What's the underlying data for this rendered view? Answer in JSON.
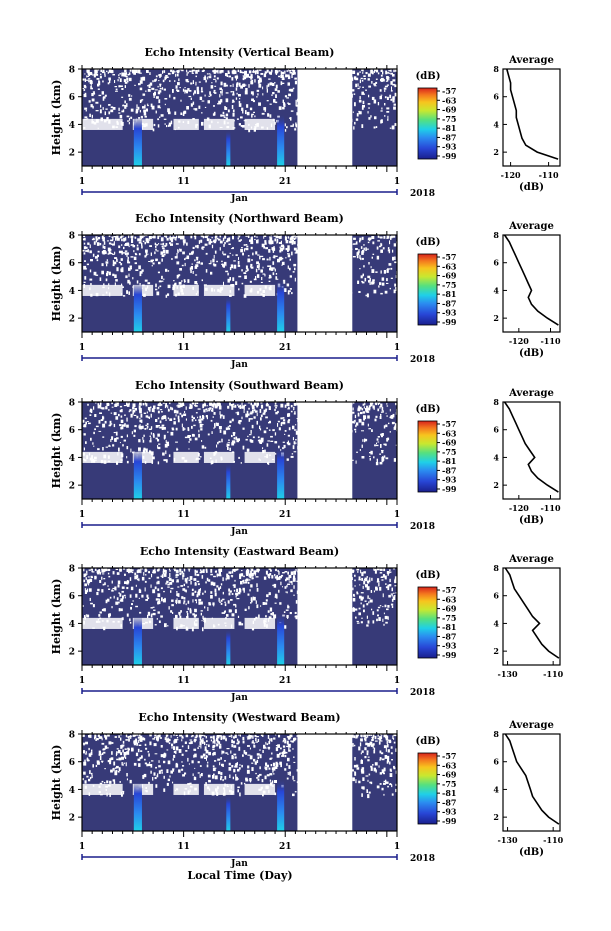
{
  "figure": {
    "xlabel": "Local Time (Day)"
  },
  "chart_data": [
    {
      "type": "heatmap",
      "title": "Echo Intensity (Vertical Beam)",
      "ylabel": "Height (km)",
      "ylim": [
        1,
        8
      ],
      "yticks": [
        "2",
        "4",
        "6",
        "8"
      ],
      "xlim": [
        1,
        32
      ],
      "xticks": [
        "1",
        "11",
        "21",
        "1"
      ],
      "month_label": "Jan",
      "year_label": "2018",
      "colorbar": {
        "unit": "(dB)",
        "labels": [
          "-57",
          "-63",
          "-69",
          "-75",
          "-81",
          "-87",
          "-93",
          "-99"
        ]
      },
      "profile": {
        "title": "Average",
        "xlabel": "(dB)",
        "xticks": [
          "-120",
          "-110"
        ],
        "xlim": [
          -122,
          -107
        ],
        "heights": [
          1.5,
          2,
          2.5,
          3,
          3.5,
          4,
          4.5,
          5,
          5.5,
          6,
          6.5,
          7,
          7.5,
          8
        ],
        "values": [
          -107.5,
          -113,
          -116,
          -117,
          -117.5,
          -118,
          -118.5,
          -118.5,
          -119,
          -119.5,
          -120,
          -120,
          -120.5,
          -121
        ]
      }
    },
    {
      "type": "heatmap",
      "title": "Echo Intensity (Northward Beam)",
      "ylabel": "Height (km)",
      "ylim": [
        1,
        8
      ],
      "yticks": [
        "2",
        "4",
        "6",
        "8"
      ],
      "xlim": [
        1,
        32
      ],
      "xticks": [
        "1",
        "11",
        "21",
        "1"
      ],
      "month_label": "Jan",
      "year_label": "2018",
      "colorbar": {
        "unit": "(dB)",
        "labels": [
          "-57",
          "-63",
          "-69",
          "-75",
          "-81",
          "-87",
          "-93",
          "-99"
        ]
      },
      "profile": {
        "title": "Average",
        "xlabel": "(dB)",
        "xticks": [
          "-120",
          "-110"
        ],
        "xlim": [
          -125,
          -107
        ],
        "heights": [
          1.5,
          2,
          2.5,
          3,
          3.5,
          4,
          4.5,
          5,
          5.5,
          6,
          6.5,
          7,
          7.5,
          8
        ],
        "values": [
          -107.5,
          -111,
          -114,
          -116,
          -117,
          -116,
          -117,
          -118,
          -119,
          -120,
          -121,
          -122,
          -123,
          -124.5
        ]
      }
    },
    {
      "type": "heatmap",
      "title": "Echo Intensity (Southward Beam)",
      "ylabel": "Height (km)",
      "ylim": [
        1,
        8
      ],
      "yticks": [
        "2",
        "4",
        "6",
        "8"
      ],
      "xlim": [
        1,
        32
      ],
      "xticks": [
        "1",
        "11",
        "21",
        "1"
      ],
      "month_label": "Jan",
      "year_label": "2018",
      "colorbar": {
        "unit": "(dB)",
        "labels": [
          "-57",
          "-63",
          "-69",
          "-75",
          "-81",
          "-87",
          "-93",
          "-99"
        ]
      },
      "profile": {
        "title": "Average",
        "xlabel": "(dB)",
        "xticks": [
          "-120",
          "-110"
        ],
        "xlim": [
          -125,
          -107
        ],
        "heights": [
          1.5,
          2,
          2.5,
          3,
          3.5,
          4,
          4.5,
          5,
          5.5,
          6,
          6.5,
          7,
          7.5,
          8
        ],
        "values": [
          -107.5,
          -111,
          -114,
          -116,
          -117,
          -115,
          -116.5,
          -118,
          -119,
          -120,
          -121,
          -122,
          -123,
          -124.5
        ]
      }
    },
    {
      "type": "heatmap",
      "title": "Echo Intensity (Eastward Beam)",
      "ylabel": "Height (km)",
      "ylim": [
        1,
        8
      ],
      "yticks": [
        "2",
        "4",
        "6",
        "8"
      ],
      "xlim": [
        1,
        32
      ],
      "xticks": [
        "1",
        "11",
        "21",
        "1"
      ],
      "month_label": "Jan",
      "year_label": "2018",
      "colorbar": {
        "unit": "(dB)",
        "labels": [
          "-57",
          "-63",
          "-69",
          "-75",
          "-81",
          "-87",
          "-93",
          "-99"
        ]
      },
      "profile": {
        "title": "Average",
        "xlabel": "",
        "xticks": [
          "-130",
          "-110"
        ],
        "xlim": [
          -132,
          -107
        ],
        "heights": [
          1.5,
          2,
          2.5,
          3,
          3.5,
          4,
          4.5,
          5,
          5.5,
          6,
          6.5,
          7,
          7.5,
          8
        ],
        "values": [
          -107.5,
          -112,
          -115,
          -117,
          -119,
          -116,
          -119,
          -121,
          -123,
          -125,
          -127,
          -128,
          -129,
          -131
        ]
      }
    },
    {
      "type": "heatmap",
      "title": "Echo Intensity (Westward Beam)",
      "ylabel": "Height (km)",
      "ylim": [
        1,
        8
      ],
      "yticks": [
        "2",
        "4",
        "6",
        "8"
      ],
      "xlim": [
        1,
        32
      ],
      "xticks": [
        "1",
        "11",
        "21",
        "1"
      ],
      "month_label": "Jan",
      "year_label": "2018",
      "colorbar": {
        "unit": "(dB)",
        "labels": [
          "-57",
          "-63",
          "-69",
          "-75",
          "-81",
          "-87",
          "-93",
          "-99"
        ]
      },
      "profile": {
        "title": "Average",
        "xlabel": "(dB)",
        "xticks": [
          "-130",
          "-110"
        ],
        "xlim": [
          -132,
          -107
        ],
        "heights": [
          1.5,
          2,
          2.5,
          3,
          3.5,
          4,
          4.5,
          5,
          5.5,
          6,
          6.5,
          7,
          7.5,
          8
        ],
        "values": [
          -107.5,
          -112,
          -115,
          -117,
          -119,
          -120,
          -121,
          -122,
          -124,
          -126,
          -127,
          -128,
          -129,
          -131
        ]
      }
    }
  ]
}
